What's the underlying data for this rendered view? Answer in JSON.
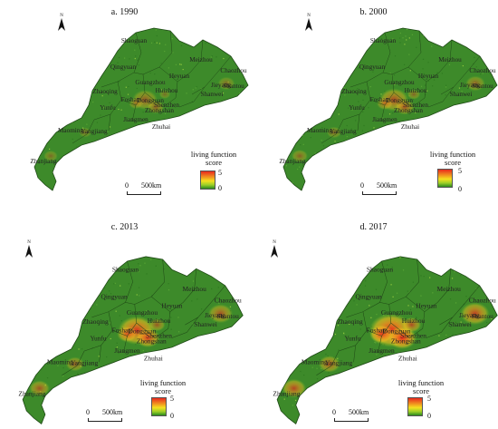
{
  "panels": [
    {
      "id": "a",
      "title": "a. 1990",
      "hotspot": 0.35
    },
    {
      "id": "b",
      "title": "b. 2000",
      "hotspot": 0.5
    },
    {
      "id": "c",
      "title": "c. 2013",
      "hotspot": 0.75
    },
    {
      "id": "d",
      "title": "d. 2017",
      "hotspot": 1.0
    }
  ],
  "north_label": "N",
  "legend": {
    "title_line1": "living function",
    "title_line2": "score",
    "max": "5",
    "min": "0"
  },
  "scale": {
    "zero": "0",
    "distance": "500km"
  },
  "cities": [
    {
      "name": "Shaoguan"
    },
    {
      "name": "Meizhou"
    },
    {
      "name": "Qingyuan"
    },
    {
      "name": "Heyuan"
    },
    {
      "name": "Chaozhou"
    },
    {
      "name": "Jieyang"
    },
    {
      "name": "Shantou"
    },
    {
      "name": "Guangzhou"
    },
    {
      "name": "Zhaoqing"
    },
    {
      "name": "Huizhou"
    },
    {
      "name": "Shanwei"
    },
    {
      "name": "Foshan"
    },
    {
      "name": "Dongguan"
    },
    {
      "name": "Shenzhen"
    },
    {
      "name": "Yunfu"
    },
    {
      "name": "Zhongshan"
    },
    {
      "name": "Jiangmen"
    },
    {
      "name": "Zhuhai"
    },
    {
      "name": "Maoming"
    },
    {
      "name": "Yangjiang"
    },
    {
      "name": "Zhanjiang"
    }
  ],
  "colors": {
    "land": "#3d8a2a",
    "boundary": "#1f4a16",
    "hot": "#e8281e",
    "warm": "#f5c21f"
  }
}
